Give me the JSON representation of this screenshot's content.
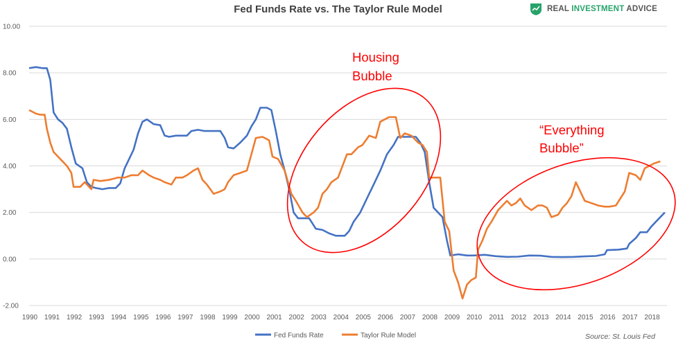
{
  "header": {
    "title": "Fed Funds Rate vs. The Taylor Rule Model",
    "logo": {
      "part1": "REAL ",
      "part2": "INVESTMENT",
      "part3": " ADVICE",
      "accent_color": "#27a36a"
    }
  },
  "source": "Source: St. Louis Fed",
  "annotations": {
    "housing": [
      "Housing",
      "Bubble"
    ],
    "everything": [
      "“Everything",
      "Bubble”"
    ],
    "color": "#ff0000"
  },
  "chart_data": {
    "type": "line",
    "title": "Fed Funds Rate vs. The Taylor Rule Model",
    "xlabel": "",
    "ylabel": "",
    "xlim": [
      1990,
      2018.7
    ],
    "ylim": [
      -2,
      10
    ],
    "x_ticks": [
      "1990",
      "1991",
      "1992",
      "1993",
      "1994",
      "1995",
      "1996",
      "1997",
      "1998",
      "1999",
      "2000",
      "2001",
      "2002",
      "2003",
      "2004",
      "2005",
      "2006",
      "2007",
      "2008",
      "2009",
      "2010",
      "2011",
      "2012",
      "2013",
      "2014",
      "2015",
      "2016",
      "2017",
      "2018"
    ],
    "y_ticks": [
      "-2.00",
      "0.00",
      "2.00",
      "4.00",
      "6.00",
      "8.00",
      "10.00"
    ],
    "grid": "horizontal",
    "legend_position": "bottom",
    "series": [
      {
        "name": "Fed Funds Rate",
        "color": "#4472c4",
        "points": [
          [
            1990.0,
            8.2
          ],
          [
            1990.3,
            8.25
          ],
          [
            1990.6,
            8.2
          ],
          [
            1990.8,
            8.2
          ],
          [
            1990.95,
            7.7
          ],
          [
            1991.1,
            6.3
          ],
          [
            1991.3,
            6.0
          ],
          [
            1991.5,
            5.85
          ],
          [
            1991.7,
            5.6
          ],
          [
            1991.9,
            4.8
          ],
          [
            1992.1,
            4.1
          ],
          [
            1992.4,
            3.9
          ],
          [
            1992.6,
            3.3
          ],
          [
            1992.8,
            3.1
          ],
          [
            1993.0,
            3.05
          ],
          [
            1993.3,
            3.0
          ],
          [
            1993.6,
            3.05
          ],
          [
            1993.9,
            3.05
          ],
          [
            1994.1,
            3.25
          ],
          [
            1994.3,
            3.9
          ],
          [
            1994.5,
            4.3
          ],
          [
            1994.7,
            4.7
          ],
          [
            1994.9,
            5.4
          ],
          [
            1995.1,
            5.9
          ],
          [
            1995.3,
            6.0
          ],
          [
            1995.6,
            5.8
          ],
          [
            1995.9,
            5.75
          ],
          [
            1996.1,
            5.3
          ],
          [
            1996.3,
            5.25
          ],
          [
            1996.6,
            5.3
          ],
          [
            1996.9,
            5.3
          ],
          [
            1997.1,
            5.3
          ],
          [
            1997.3,
            5.5
          ],
          [
            1997.6,
            5.55
          ],
          [
            1997.9,
            5.5
          ],
          [
            1998.3,
            5.5
          ],
          [
            1998.6,
            5.5
          ],
          [
            1998.8,
            5.2
          ],
          [
            1998.95,
            4.8
          ],
          [
            1999.2,
            4.75
          ],
          [
            1999.5,
            5.0
          ],
          [
            1999.8,
            5.3
          ],
          [
            2000.0,
            5.7
          ],
          [
            2000.2,
            6.0
          ],
          [
            2000.4,
            6.5
          ],
          [
            2000.7,
            6.5
          ],
          [
            2000.9,
            6.4
          ],
          [
            2001.1,
            5.5
          ],
          [
            2001.3,
            4.5
          ],
          [
            2001.5,
            3.8
          ],
          [
            2001.7,
            3.0
          ],
          [
            2001.9,
            2.0
          ],
          [
            2002.1,
            1.75
          ],
          [
            2002.6,
            1.75
          ],
          [
            2002.9,
            1.3
          ],
          [
            2003.2,
            1.25
          ],
          [
            2003.5,
            1.1
          ],
          [
            2003.8,
            1.0
          ],
          [
            2004.2,
            1.0
          ],
          [
            2004.4,
            1.2
          ],
          [
            2004.6,
            1.6
          ],
          [
            2004.9,
            2.0
          ],
          [
            2005.2,
            2.6
          ],
          [
            2005.5,
            3.2
          ],
          [
            2005.8,
            3.8
          ],
          [
            2006.1,
            4.5
          ],
          [
            2006.4,
            4.9
          ],
          [
            2006.6,
            5.25
          ],
          [
            2007.0,
            5.25
          ],
          [
            2007.4,
            5.25
          ],
          [
            2007.6,
            5.0
          ],
          [
            2007.8,
            4.6
          ],
          [
            2008.0,
            3.3
          ],
          [
            2008.2,
            2.2
          ],
          [
            2008.4,
            2.0
          ],
          [
            2008.6,
            1.8
          ],
          [
            2008.8,
            0.8
          ],
          [
            2008.95,
            0.15
          ],
          [
            2009.3,
            0.2
          ],
          [
            2009.7,
            0.15
          ],
          [
            2010.0,
            0.15
          ],
          [
            2010.5,
            0.18
          ],
          [
            2011.0,
            0.12
          ],
          [
            2011.5,
            0.09
          ],
          [
            2012.0,
            0.1
          ],
          [
            2012.5,
            0.15
          ],
          [
            2013.0,
            0.14
          ],
          [
            2013.5,
            0.09
          ],
          [
            2014.0,
            0.08
          ],
          [
            2014.5,
            0.09
          ],
          [
            2015.0,
            0.11
          ],
          [
            2015.5,
            0.13
          ],
          [
            2015.9,
            0.2
          ],
          [
            2016.0,
            0.38
          ],
          [
            2016.5,
            0.4
          ],
          [
            2016.9,
            0.45
          ],
          [
            2017.0,
            0.65
          ],
          [
            2017.3,
            0.9
          ],
          [
            2017.5,
            1.15
          ],
          [
            2017.8,
            1.15
          ],
          [
            2018.0,
            1.4
          ],
          [
            2018.3,
            1.7
          ],
          [
            2018.6,
            2.0
          ]
        ]
      },
      {
        "name": "Taylor Rule Model",
        "color": "#ed7d31",
        "points": [
          [
            1990.0,
            6.4
          ],
          [
            1990.3,
            6.25
          ],
          [
            1990.5,
            6.2
          ],
          [
            1990.7,
            6.2
          ],
          [
            1990.8,
            5.6
          ],
          [
            1990.95,
            5.0
          ],
          [
            1991.1,
            4.6
          ],
          [
            1991.3,
            4.4
          ],
          [
            1991.5,
            4.2
          ],
          [
            1991.7,
            4.0
          ],
          [
            1991.9,
            3.7
          ],
          [
            1992.0,
            3.1
          ],
          [
            1992.3,
            3.1
          ],
          [
            1992.5,
            3.3
          ],
          [
            1992.8,
            3.0
          ],
          [
            1992.9,
            3.4
          ],
          [
            1993.2,
            3.35
          ],
          [
            1993.6,
            3.4
          ],
          [
            1994.0,
            3.5
          ],
          [
            1994.3,
            3.5
          ],
          [
            1994.6,
            3.6
          ],
          [
            1994.9,
            3.6
          ],
          [
            1995.1,
            3.8
          ],
          [
            1995.4,
            3.6
          ],
          [
            1995.6,
            3.5
          ],
          [
            1995.9,
            3.4
          ],
          [
            1996.1,
            3.3
          ],
          [
            1996.4,
            3.2
          ],
          [
            1996.6,
            3.5
          ],
          [
            1996.9,
            3.5
          ],
          [
            1997.1,
            3.6
          ],
          [
            1997.4,
            3.8
          ],
          [
            1997.6,
            3.9
          ],
          [
            1997.8,
            3.4
          ],
          [
            1998.0,
            3.2
          ],
          [
            1998.3,
            2.8
          ],
          [
            1998.6,
            2.9
          ],
          [
            1998.8,
            3.0
          ],
          [
            1998.95,
            3.3
          ],
          [
            1999.2,
            3.6
          ],
          [
            1999.5,
            3.7
          ],
          [
            1999.8,
            3.8
          ],
          [
            2000.0,
            4.5
          ],
          [
            2000.2,
            5.2
          ],
          [
            2000.5,
            5.25
          ],
          [
            2000.8,
            5.1
          ],
          [
            2000.95,
            4.4
          ],
          [
            2001.2,
            4.3
          ],
          [
            2001.5,
            3.8
          ],
          [
            2001.8,
            2.8
          ],
          [
            2002.0,
            2.5
          ],
          [
            2002.3,
            2.0
          ],
          [
            2002.5,
            1.8
          ],
          [
            2002.8,
            2.0
          ],
          [
            2003.0,
            2.2
          ],
          [
            2003.2,
            2.8
          ],
          [
            2003.4,
            3.0
          ],
          [
            2003.6,
            3.3
          ],
          [
            2003.9,
            3.5
          ],
          [
            2004.1,
            4.0
          ],
          [
            2004.3,
            4.5
          ],
          [
            2004.5,
            4.5
          ],
          [
            2004.8,
            4.8
          ],
          [
            2005.0,
            4.9
          ],
          [
            2005.3,
            5.3
          ],
          [
            2005.6,
            5.2
          ],
          [
            2005.8,
            5.9
          ],
          [
            2006.0,
            6.0
          ],
          [
            2006.2,
            6.1
          ],
          [
            2006.5,
            6.1
          ],
          [
            2006.7,
            5.2
          ],
          [
            2006.9,
            5.4
          ],
          [
            2007.2,
            5.3
          ],
          [
            2007.5,
            5.0
          ],
          [
            2007.7,
            4.9
          ],
          [
            2007.9,
            4.6
          ],
          [
            2008.0,
            3.5
          ],
          [
            2008.3,
            3.5
          ],
          [
            2008.5,
            3.5
          ],
          [
            2008.7,
            1.6
          ],
          [
            2008.9,
            1.2
          ],
          [
            2009.1,
            -0.5
          ],
          [
            2009.3,
            -1.0
          ],
          [
            2009.5,
            -1.7
          ],
          [
            2009.7,
            -1.1
          ],
          [
            2009.9,
            -0.9
          ],
          [
            2010.1,
            -0.8
          ],
          [
            2010.2,
            0.4
          ],
          [
            2010.4,
            0.8
          ],
          [
            2010.6,
            1.3
          ],
          [
            2010.8,
            1.6
          ],
          [
            2011.1,
            2.1
          ],
          [
            2011.3,
            2.3
          ],
          [
            2011.5,
            2.5
          ],
          [
            2011.7,
            2.3
          ],
          [
            2011.9,
            2.4
          ],
          [
            2012.1,
            2.6
          ],
          [
            2012.3,
            2.3
          ],
          [
            2012.6,
            2.1
          ],
          [
            2012.9,
            2.3
          ],
          [
            2013.1,
            2.3
          ],
          [
            2013.3,
            2.2
          ],
          [
            2013.5,
            1.8
          ],
          [
            2013.8,
            1.9
          ],
          [
            2014.0,
            2.2
          ],
          [
            2014.2,
            2.4
          ],
          [
            2014.4,
            2.7
          ],
          [
            2014.6,
            3.3
          ],
          [
            2014.8,
            2.9
          ],
          [
            2015.0,
            2.5
          ],
          [
            2015.3,
            2.4
          ],
          [
            2015.6,
            2.3
          ],
          [
            2015.9,
            2.25
          ],
          [
            2016.1,
            2.25
          ],
          [
            2016.4,
            2.3
          ],
          [
            2016.6,
            2.6
          ],
          [
            2016.8,
            2.9
          ],
          [
            2017.0,
            3.7
          ],
          [
            2017.3,
            3.6
          ],
          [
            2017.5,
            3.4
          ],
          [
            2017.7,
            3.9
          ],
          [
            2017.9,
            4.0
          ],
          [
            2018.1,
            4.1
          ],
          [
            2018.4,
            4.2
          ]
        ]
      }
    ]
  }
}
